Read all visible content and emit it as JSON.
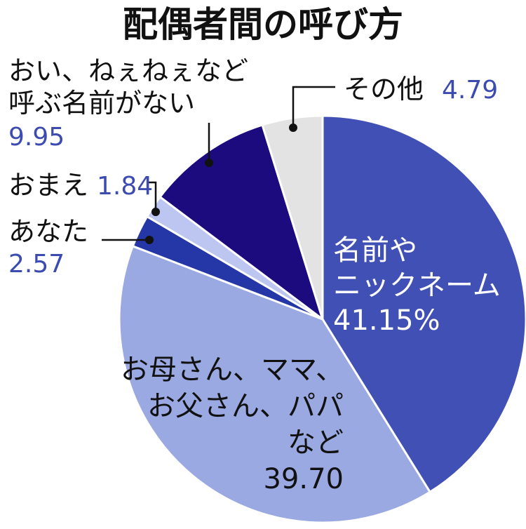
{
  "chart_data": {
    "type": "pie",
    "title": "配偶者間の呼び方",
    "slices": [
      {
        "label_lines": [
          "名前や",
          "ニックネーム"
        ],
        "value_text": "41.15%",
        "value": 41.15,
        "color": "#4150b5"
      },
      {
        "label_lines": [
          "お母さん、ママ、",
          "お父さん、パパ",
          "など"
        ],
        "value_text": "39.70",
        "value": 39.7,
        "color": "#9aa9e2"
      },
      {
        "label_lines": [
          "あなた"
        ],
        "value_text": "2.57",
        "value": 2.57,
        "color": "#2536a6"
      },
      {
        "label_lines": [
          "おまえ"
        ],
        "value_text": "1.84",
        "value": 1.84,
        "color": "#bcc6f0"
      },
      {
        "label_lines": [
          "おい、ねぇねぇなど",
          "呼ぶ名前がない"
        ],
        "value_text": "9.95",
        "value": 9.95,
        "color": "#1c0b7e"
      },
      {
        "label_lines": [
          "その他"
        ],
        "value_text": "4.79",
        "value": 4.79,
        "color": "#e3e3e3"
      }
    ]
  }
}
